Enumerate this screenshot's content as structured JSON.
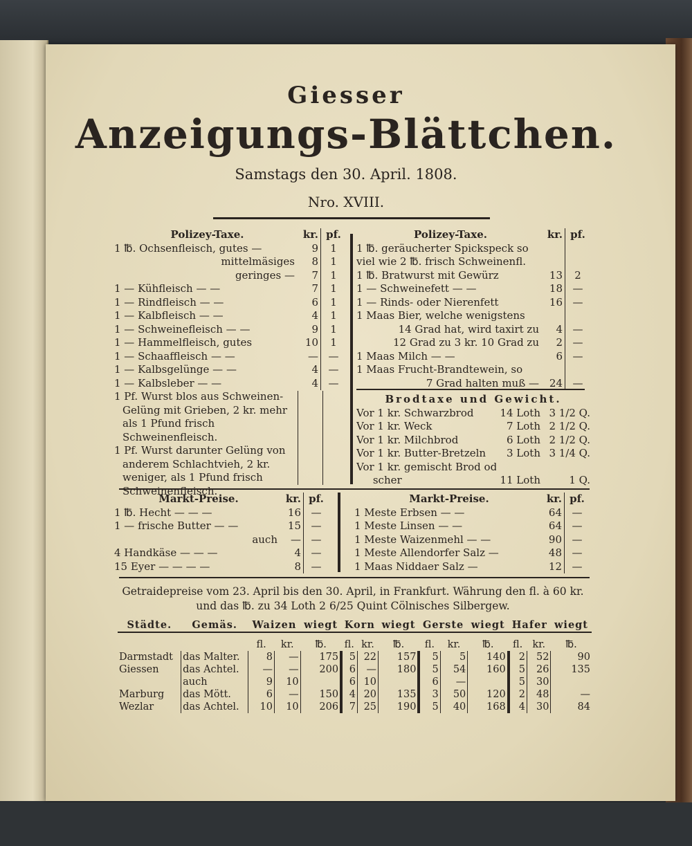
{
  "header": {
    "title_small": "Giesser",
    "title_large": "Anzeigungs-Blättchen.",
    "date": "Samstags den 30. April. 1808.",
    "number": "Nro. XVIII."
  },
  "polizey_left": {
    "heading": "Polizey-Taxe.",
    "kr": "kr.",
    "pf": "pf.",
    "rows": [
      {
        "item": "1 ℔. Ochsenfleisch, gutes —",
        "kr": "9",
        "pf": "1"
      },
      {
        "item": "mittelmäsiges",
        "kr": "8",
        "pf": "1",
        "indent": true
      },
      {
        "item": "geringes —",
        "kr": "7",
        "pf": "1",
        "indent": true
      },
      {
        "item": "1 — Kühfleisch — —",
        "kr": "7",
        "pf": "1"
      },
      {
        "item": "1 — Rindfleisch — —",
        "kr": "6",
        "pf": "1"
      },
      {
        "item": "1 — Kalbfleisch — —",
        "kr": "4",
        "pf": "1"
      },
      {
        "item": "1 — Schweinefleisch — —",
        "kr": "9",
        "pf": "1"
      },
      {
        "item": "1 — Hammelfleisch, gutes",
        "kr": "10",
        "pf": "1"
      },
      {
        "item": "1 — Schaaffleisch — —",
        "kr": "—",
        "pf": "—"
      },
      {
        "item": "1 — Kalbsgelünge — —",
        "kr": "4",
        "pf": "—"
      },
      {
        "item": "1 — Kalbsleber — —",
        "kr": "4",
        "pf": "—"
      }
    ],
    "notes": [
      "1 Pf. Wurst blos aus Schweinen-Gelüng mit Grieben, 2 kr. mehr als 1 Pfund frisch Schweinenfleisch.",
      "1 Pf. Wurst darunter Gelüng von anderem Schlachtvieh, 2 kr. weniger, als 1 Pfund frisch Schweinenfleisch."
    ]
  },
  "polizey_right": {
    "heading": "Polizey-Taxe.",
    "kr": "kr.",
    "pf": "pf.",
    "rows": [
      {
        "item": "1 ℔. geräucherter Spickspeck so",
        "kr": "",
        "pf": ""
      },
      {
        "item": "viel wie 2 ℔. frisch Schweinenfl.",
        "kr": "",
        "pf": ""
      },
      {
        "item": "1 ℔. Bratwurst mit Gewürz",
        "kr": "13",
        "pf": "2"
      },
      {
        "item": "1 — Schweinefett — —",
        "kr": "18",
        "pf": "—"
      },
      {
        "item": "1 — Rinds- oder Nierenfett",
        "kr": "16",
        "pf": "—"
      },
      {
        "item": "1 Maas Bier, welche wenigstens",
        "kr": "",
        "pf": ""
      },
      {
        "item": "14 Grad hat, wird taxirt zu",
        "kr": "4",
        "pf": "—",
        "indent": true
      },
      {
        "item": "12 Grad zu 3 kr. 10 Grad zu",
        "kr": "2",
        "pf": "—",
        "indent": true
      },
      {
        "item": "1 Maas Milch — —",
        "kr": "6",
        "pf": "—"
      },
      {
        "item": "1 Maas Frucht-Brandtewein, so",
        "kr": "",
        "pf": ""
      },
      {
        "item": "7 Grad halten muß —",
        "kr": "24",
        "pf": "—",
        "indent": true
      }
    ]
  },
  "brodtaxe": {
    "heading": "Brodtaxe und Gewicht.",
    "rows": [
      {
        "item": "Vor 1 kr. Schwarzbrod",
        "loth": "14 Loth",
        "q": "3 1/2 Q."
      },
      {
        "item": "Vor 1 kr. Weck",
        "loth": "7 Loth",
        "q": "2 1/2 Q."
      },
      {
        "item": "Vor 1 kr. Milchbrod",
        "loth": "6 Loth",
        "q": "2 1/2 Q."
      },
      {
        "item": "Vor 1 kr. Butter-Bretzeln",
        "loth": "3 Loth",
        "q": "3 1/4 Q."
      },
      {
        "item": "Vor 1 kr. gemischt Brod oder Taig-",
        "loth": "",
        "q": ""
      },
      {
        "item": "     scher",
        "loth": "11 Loth",
        "q": "1 Q."
      }
    ]
  },
  "markt_left": {
    "heading": "Markt-Preise.",
    "kr": "kr.",
    "pf": "pf.",
    "rows": [
      {
        "item": "1 ℔. Hecht — — —",
        "kr": "16",
        "pf": "—"
      },
      {
        "item": "1 — frische Butter — —",
        "kr": "15",
        "pf": "—"
      },
      {
        "item": "auch",
        "kr": "—",
        "pf": "—",
        "indent": true
      },
      {
        "item": "4 Handkäse — — —",
        "kr": "4",
        "pf": "—"
      },
      {
        "item": "15 Eyer — — — —",
        "kr": "8",
        "pf": "—"
      }
    ]
  },
  "markt_right": {
    "heading": "Markt-Preise.",
    "kr": "kr.",
    "pf": "pf.",
    "rows": [
      {
        "item": "1 Meste Erbsen — —",
        "kr": "64",
        "pf": "—"
      },
      {
        "item": "1 Meste Linsen — —",
        "kr": "64",
        "pf": "—"
      },
      {
        "item": "1 Meste Waizenmehl — —",
        "kr": "90",
        "pf": "—"
      },
      {
        "item": "1 Meste Allendorfer Salz —",
        "kr": "48",
        "pf": "—"
      },
      {
        "item": "1 Maas Niddaer Salz —",
        "kr": "12",
        "pf": "—"
      }
    ]
  },
  "getraide": {
    "intro": "Getraidepreise vom 23. April bis den 30. April, in Frankfurt. Währung den fl. à 60 kr. und das ℔. zu 34 Loth 2 6/25 Quint Cölnisches Silbergew.",
    "headers": [
      "Städte.",
      "Gemäs.",
      "Waizen",
      "wiegt",
      "Korn",
      "wiegt",
      "Gerste",
      "wiegt",
      "Hafer",
      "wiegt"
    ],
    "subheaders": [
      "",
      "",
      "fl.",
      "kr.",
      "℔.",
      "fl.",
      "kr.",
      "℔.",
      "fl.",
      "kr.",
      "℔.",
      "fl.",
      "kr.",
      "℔."
    ],
    "rows": [
      [
        "Darmstadt",
        "das Malter.",
        "8",
        "—",
        "175",
        "5",
        "22",
        "157",
        "5",
        "5",
        "140",
        "2",
        "52",
        "90"
      ],
      [
        "Giessen",
        "das Achtel.",
        "—",
        "—",
        "200",
        "6",
        "—",
        "180",
        "5",
        "54",
        "160",
        "5",
        "26",
        "135"
      ],
      [
        "",
        "auch",
        "9",
        "10",
        "",
        "6",
        "10",
        "",
        "6",
        "—",
        "",
        "5",
        "30",
        ""
      ],
      [
        "Marburg",
        "das Mött.",
        "6",
        "—",
        "150",
        "4",
        "20",
        "135",
        "3",
        "50",
        "120",
        "2",
        "48",
        "—"
      ],
      [
        "Wezlar",
        "das Achtel.",
        "10",
        "10",
        "206",
        "7",
        "25",
        "190",
        "5",
        "40",
        "168",
        "4",
        "30",
        "84"
      ]
    ]
  }
}
